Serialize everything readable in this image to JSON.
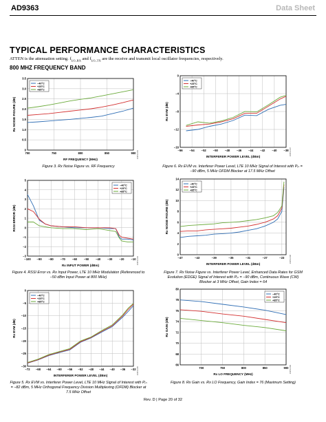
{
  "header": {
    "part": "AD9363",
    "doc_type": "Data Sheet"
  },
  "section_title": "TYPICAL PERFORMANCE CHARACTERISTICS",
  "intro": {
    "before": "ATTEN is the attenuation setting. f",
    "sub1": "LO_RX",
    "mid": " and f",
    "sub2": "LO_TX",
    "after": " are the receive and transmit local oscillator frequencies, respectively."
  },
  "subsection": "800 MHZ FREQUENCY BAND",
  "series_colors": {
    "-40°C": "#2e6db4",
    "+25°C": "#d32f2f",
    "+85°C": "#6aaa3a"
  },
  "captions": {
    "fig3": "Figure 3. Rx Noise Figure vs. RF Frequency",
    "fig4": "Figure 4. RSSI Error vs. Rx Input Power, LTE 10 MHz Modulation (Referenced to −50 dBm Input Power at 800 MHz)",
    "fig5": "Figure 5. Rx EVM vs. Interferer Power Level, LTE 10 MHz Signal of Interest with Pᵢₙ = −82 dBm, 5 MHz Orthogonal Frequency Division Multiplexing (OFDM) Blocker at 7.5 MHz Offset",
    "fig6": "Figure 6. Rx EVM vs. Interferer Power Level, LTE 10 MHz Signal of Interest with Pᵢₙ = −90 dBm, 5 MHz OFDM Blocker at 17.5 MHz Offset",
    "fig7": "Figure 7. Rx Noise Figure vs. Interferer Power Level, Enhanced Data Rates for GSM Evolution (EDGE) Signal of Interest with Pᵢₙ = −90 dBm, Continuous Wave (CW) Blocker at 3 MHz Offset, Gain Index = 64",
    "fig8": "Figure 8. Rx Gain vs. Rx LO Frequency, Gain Index = 76 (Maximum Setting)"
  },
  "footer": "Rev. D | Page 20 of 32",
  "chart_data": [
    {
      "id": "fig3",
      "type": "line",
      "xlabel": "RF FREQUENCY (MHz)",
      "ylabel": "Rx NOISE FIGURE (dB)",
      "xlim": [
        700,
        900
      ],
      "ylim": [
        0,
        3.5
      ],
      "xticks": [
        700,
        750,
        800,
        850,
        900
      ],
      "yticks": [
        0,
        0.5,
        1.0,
        1.5,
        2.0,
        2.5,
        3.0,
        3.5
      ],
      "xtick_labels": [
        "700",
        "750",
        "800",
        "850",
        "900"
      ],
      "ytick_labels": [
        "0",
        "0.5",
        "1.0",
        "1.5",
        "2.0",
        "2.5",
        "3.0",
        "3.5"
      ],
      "legend": [
        "−40°C",
        "+25°C",
        "+85°C"
      ],
      "legend_pos": "top-left",
      "code": "10950-003",
      "series": [
        {
          "name": "−40°C",
          "x": [
            700,
            720,
            740,
            760,
            780,
            800,
            820,
            840,
            860,
            880,
            900
          ],
          "y": [
            1.35,
            1.38,
            1.42,
            1.46,
            1.5,
            1.55,
            1.6,
            1.66,
            1.78,
            1.9,
            2.05
          ]
        },
        {
          "name": "+25°C",
          "x": [
            700,
            720,
            740,
            760,
            780,
            800,
            820,
            840,
            860,
            880,
            900
          ],
          "y": [
            1.7,
            1.74,
            1.78,
            1.84,
            1.9,
            1.96,
            2.02,
            2.1,
            2.2,
            2.32,
            2.45
          ]
        },
        {
          "name": "+85°C",
          "x": [
            700,
            720,
            740,
            760,
            780,
            800,
            820,
            840,
            860,
            880,
            900
          ],
          "y": [
            2.05,
            2.12,
            2.2,
            2.3,
            2.4,
            2.48,
            2.55,
            2.65,
            2.75,
            2.85,
            2.95
          ]
        }
      ]
    },
    {
      "id": "fig6",
      "type": "line",
      "xlabel": "INTERFERER POWER LEVEL (dBm)",
      "ylabel": "Rx EVM (dB)",
      "xlim": [
        -56,
        -38
      ],
      "ylim": [
        -16,
        0
      ],
      "xticks": [
        -56,
        -54,
        -52,
        -50,
        -48,
        -46,
        -44,
        -42,
        -40,
        -38
      ],
      "yticks": [
        -16,
        -12,
        -8,
        -4,
        0
      ],
      "xtick_labels": [
        "−56",
        "−54",
        "−52",
        "−50",
        "−48",
        "−46",
        "−44",
        "−42",
        "−40",
        "−38"
      ],
      "ytick_labels": [
        "−16",
        "−12",
        "−8",
        "−4",
        "0"
      ],
      "legend": [
        "−40°C",
        "+25°C",
        "+85°C"
      ],
      "legend_pos": "top-left",
      "code": "10950-007",
      "series": [
        {
          "name": "−40°C",
          "x": [
            -55,
            -53,
            -51,
            -49,
            -47,
            -45,
            -43,
            -41,
            -39,
            -38
          ],
          "y": [
            -12.3,
            -12.0,
            -11.3,
            -10.8,
            -10.0,
            -8.8,
            -8.9,
            -7.5,
            -6.6,
            -6.4
          ]
        },
        {
          "name": "+25°C",
          "x": [
            -55,
            -53,
            -51,
            -49,
            -47,
            -45,
            -43,
            -41,
            -39,
            -38
          ],
          "y": [
            -11.3,
            -11.0,
            -10.8,
            -10.3,
            -9.6,
            -8.4,
            -8.4,
            -6.8,
            -5.2,
            -4.6
          ]
        },
        {
          "name": "+85°C",
          "x": [
            -55,
            -53,
            -51,
            -49,
            -47,
            -45,
            -43,
            -41,
            -39,
            -38
          ],
          "y": [
            -11.1,
            -10.3,
            -10.6,
            -10.1,
            -9.3,
            -8.0,
            -8.1,
            -6.5,
            -4.8,
            -4.4
          ]
        }
      ]
    },
    {
      "id": "fig4",
      "type": "line",
      "xlabel": "Rx INPUT POWER (dBm)",
      "ylabel": "RSSI ERROR (dB)",
      "xlim": [
        -100,
        -10
      ],
      "ylim": [
        -3,
        5
      ],
      "xticks": [
        -100,
        -90,
        -80,
        -70,
        -60,
        -50,
        -40,
        -30,
        -20,
        -10
      ],
      "yticks": [
        -3,
        -2,
        -1,
        0,
        1,
        2,
        3,
        4,
        5
      ],
      "xtick_labels": [
        "−100",
        "−90",
        "−80",
        "−70",
        "−60",
        "−50",
        "−40",
        "−30",
        "−20",
        "−10"
      ],
      "ytick_labels": [
        "−3",
        "−2",
        "−1",
        "0",
        "1",
        "2",
        "3",
        "4",
        "5"
      ],
      "legend": [
        "−40°C",
        "+25°C",
        "+85°C"
      ],
      "legend_pos": "top-right",
      "code": "10950-004",
      "series": [
        {
          "name": "−40°C",
          "x": [
            -100,
            -95,
            -90,
            -85,
            -80,
            -70,
            -60,
            -50,
            -40,
            -30,
            -25,
            -22,
            -20,
            -15,
            -10
          ],
          "y": [
            3.5,
            2.3,
            0.8,
            0.4,
            0.2,
            0.1,
            0.0,
            0.0,
            0.0,
            -0.1,
            -0.1,
            -1.0,
            -1.2,
            -1.2,
            -1.3
          ]
        },
        {
          "name": "+25°C",
          "x": [
            -100,
            -95,
            -90,
            -85,
            -80,
            -70,
            -60,
            -50,
            -40,
            -30,
            -25,
            -22,
            -20,
            -15,
            -10
          ],
          "y": [
            2.0,
            1.7,
            0.9,
            0.4,
            0.2,
            0.1,
            0.1,
            0.0,
            0.0,
            0.0,
            -0.1,
            -0.8,
            -1.0,
            -1.1,
            -1.2
          ]
        },
        {
          "name": "+85°C",
          "x": [
            -100,
            -95,
            -90,
            -85,
            -80,
            -70,
            -60,
            -50,
            -40,
            -30,
            -25,
            -22,
            -20,
            -15,
            -10
          ],
          "y": [
            0.6,
            0.6,
            0.2,
            0.1,
            0.0,
            -0.1,
            -0.1,
            -0.2,
            -0.1,
            -0.3,
            -0.4,
            -1.1,
            -1.4,
            -1.5,
            -1.5
          ]
        }
      ]
    },
    {
      "id": "fig7",
      "type": "line",
      "xlabel": "INTERFERER POWER LEVEL (dBm)",
      "ylabel": "Rx NOISE FIGURE (dB)",
      "xlim": [
        -47,
        -22
      ],
      "ylim": [
        0,
        14
      ],
      "xticks": [
        -47,
        -43,
        -39,
        -35,
        -31,
        -27,
        -23
      ],
      "yticks": [
        0,
        2,
        4,
        6,
        8,
        10,
        12,
        14
      ],
      "xtick_labels": [
        "−47",
        "−43",
        "−39",
        "−35",
        "−31",
        "−27",
        "−23"
      ],
      "ytick_labels": [
        "0",
        "2",
        "4",
        "6",
        "8",
        "10",
        "12",
        "14"
      ],
      "legend": [
        "−40°C",
        "+25°C",
        "+85°C"
      ],
      "legend_pos": "top-left",
      "code": "10950-008",
      "series": [
        {
          "name": "−40°C",
          "x": [
            -47,
            -45,
            -43,
            -41,
            -39,
            -37,
            -35,
            -33,
            -31,
            -29,
            -27,
            -25,
            -24,
            -23,
            -22.5
          ],
          "y": [
            3.2,
            3.4,
            3.5,
            3.6,
            3.8,
            3.9,
            4.0,
            4.2,
            4.5,
            4.8,
            5.3,
            6.0,
            6.6,
            8.0,
            12.5
          ]
        },
        {
          "name": "+25°C",
          "x": [
            -47,
            -45,
            -43,
            -41,
            -39,
            -37,
            -35,
            -33,
            -31,
            -29,
            -27,
            -25,
            -24,
            -23,
            -22.5
          ],
          "y": [
            4.3,
            4.4,
            4.4,
            4.6,
            4.7,
            4.8,
            4.9,
            5.1,
            5.3,
            5.6,
            6.0,
            6.6,
            7.2,
            8.6,
            13.0
          ]
        },
        {
          "name": "+85°C",
          "x": [
            -47,
            -45,
            -43,
            -41,
            -39,
            -37,
            -35,
            -33,
            -31,
            -29,
            -27,
            -25,
            -24,
            -23,
            -22.5
          ],
          "y": [
            5.2,
            5.4,
            5.5,
            5.6,
            5.7,
            5.9,
            6.0,
            6.1,
            6.3,
            6.5,
            6.8,
            7.2,
            7.8,
            9.0,
            13.5
          ]
        }
      ]
    },
    {
      "id": "fig5",
      "type": "line",
      "xlabel": "INTERFERER POWER LEVEL (dBm)",
      "ylabel": "Rx EVM (dB)",
      "xlim": [
        -72,
        -32
      ],
      "ylim": [
        -30,
        0
      ],
      "xticks": [
        -72,
        -68,
        -64,
        -60,
        -56,
        -52,
        -48,
        -44,
        -40,
        -36,
        -32
      ],
      "yticks": [
        -30,
        -25,
        -20,
        -15,
        -10,
        -5,
        0
      ],
      "xtick_labels": [
        "−72",
        "−68",
        "−64",
        "−60",
        "−56",
        "−52",
        "−48",
        "−44",
        "−40",
        "−36",
        "−32"
      ],
      "ytick_labels": [
        "−30",
        "−25",
        "−20",
        "−15",
        "−10",
        "−5",
        "0"
      ],
      "legend": [
        "−40°C",
        "+25°C",
        "+85°C"
      ],
      "legend_pos": "top-left",
      "code": "10950-005",
      "series": [
        {
          "name": "−40°C",
          "x": [
            -72,
            -68,
            -64,
            -60,
            -56,
            -52,
            -48,
            -44,
            -40,
            -36,
            -34,
            -32
          ],
          "y": [
            -28.8,
            -27.5,
            -25.8,
            -24.6,
            -23.5,
            -20.5,
            -18.8,
            -16.5,
            -14.3,
            -10.5,
            -8.3,
            -6.0
          ]
        },
        {
          "name": "+25°C",
          "x": [
            -72,
            -68,
            -64,
            -60,
            -56,
            -52,
            -48,
            -44,
            -40,
            -36,
            -34,
            -32
          ],
          "y": [
            -28.7,
            -27.4,
            -25.6,
            -24.4,
            -23.3,
            -20.3,
            -18.6,
            -16.2,
            -14.0,
            -10.0,
            -7.5,
            -5.4
          ]
        },
        {
          "name": "+85°C",
          "x": [
            -72,
            -68,
            -64,
            -60,
            -56,
            -52,
            -48,
            -44,
            -40,
            -36,
            -34,
            -32
          ],
          "y": [
            -28.5,
            -27.2,
            -25.4,
            -24.2,
            -23.0,
            -20.0,
            -18.4,
            -15.9,
            -13.6,
            -9.6,
            -7.0,
            -5.1
          ]
        }
      ]
    },
    {
      "id": "fig8",
      "type": "line",
      "xlabel": "Rx LO FREQUENCY (MHz)",
      "ylabel": "Rx GAIN (dB)",
      "xlim": [
        650,
        900
      ],
      "ylim": [
        66,
        80
      ],
      "xticks": [
        700,
        750,
        800,
        850,
        900
      ],
      "yticks": [
        66,
        68,
        70,
        72,
        74,
        76,
        78,
        80
      ],
      "xtick_labels": [
        "700",
        "750",
        "800",
        "850",
        "900"
      ],
      "ytick_labels": [
        "66",
        "68",
        "70",
        "72",
        "74",
        "76",
        "78",
        "80"
      ],
      "legend": [
        "−40°C",
        "+25°C",
        "+85°C"
      ],
      "legend_pos": "top-right",
      "code": "10950-009",
      "series": [
        {
          "name": "−40°C",
          "x": [
            650,
            700,
            750,
            800,
            850,
            900
          ],
          "y": [
            78.0,
            77.7,
            77.2,
            76.7,
            76.1,
            75.3
          ]
        },
        {
          "name": "+25°C",
          "x": [
            650,
            700,
            750,
            800,
            850,
            900
          ],
          "y": [
            76.2,
            75.9,
            75.4,
            75.0,
            74.4,
            73.8
          ]
        },
        {
          "name": "+85°C",
          "x": [
            650,
            700,
            750,
            800,
            850,
            900
          ],
          "y": [
            74.6,
            74.2,
            73.8,
            73.3,
            72.9,
            72.3
          ]
        }
      ]
    }
  ]
}
